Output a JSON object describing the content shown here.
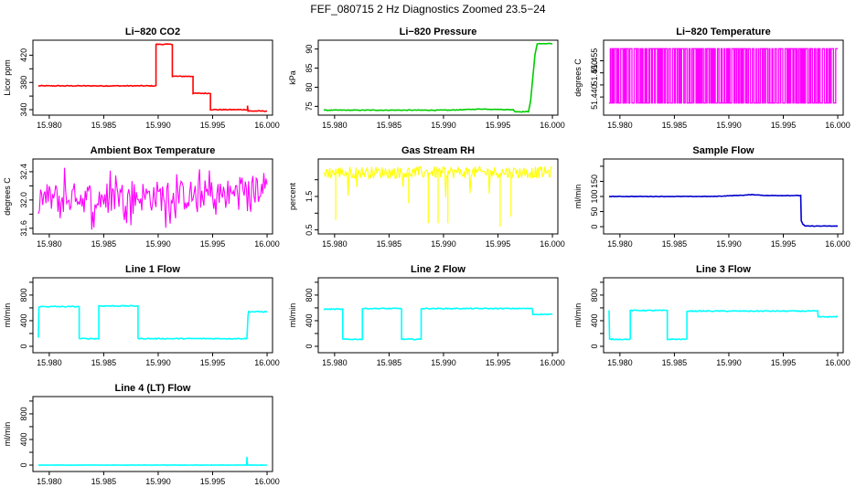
{
  "figure": {
    "title": "FEF_080715  2 Hz Diagnostics Zoomed 23.5−24"
  },
  "x_ticks": [
    "15.980",
    "15.985",
    "15.990",
    "15.995",
    "16.000"
  ],
  "colors": {
    "red": "#ff0000",
    "green": "#00cc00",
    "magenta": "#ff00ff",
    "yellow": "#ffff00",
    "blue": "#0000cc",
    "cyan": "#00ffff",
    "axis": "#000000"
  },
  "chart_data": [
    {
      "type": "line",
      "title": "Li−820 CO2",
      "ylabel": "Licor ppm",
      "xlim": [
        15.9785,
        16.0005
      ],
      "ylim": [
        332,
        442
      ],
      "yticks": [
        340,
        360,
        380,
        400,
        420
      ],
      "ytick_labels": [
        "340",
        "",
        "380",
        "",
        "420"
      ],
      "color": "red",
      "noise": 0.6,
      "segments": [
        [
          15.979,
          375
        ],
        [
          15.9898,
          375
        ],
        [
          15.9898,
          436
        ],
        [
          15.9913,
          436
        ],
        [
          15.9913,
          389
        ],
        [
          15.9932,
          389
        ],
        [
          15.9932,
          364
        ],
        [
          15.9948,
          364
        ],
        [
          15.9948,
          340
        ],
        [
          15.9982,
          340
        ],
        [
          15.9982,
          346
        ],
        [
          15.99825,
          338
        ],
        [
          16.0,
          338
        ]
      ]
    },
    {
      "type": "line",
      "title": "Li−820 Pressure",
      "ylabel": "kPa",
      "xlim": [
        15.9785,
        16.0005
      ],
      "ylim": [
        72.7,
        92.3
      ],
      "yticks": [
        75,
        80,
        85,
        90
      ],
      "ytick_labels": [
        "75",
        "80",
        "85",
        "90"
      ],
      "color": "green",
      "noise": 0.08,
      "segments": [
        [
          15.979,
          74.0
        ],
        [
          15.9905,
          74.0
        ],
        [
          15.9935,
          74.3
        ],
        [
          15.9964,
          74.1
        ],
        [
          15.9966,
          73.6
        ],
        [
          15.9978,
          73.6
        ],
        [
          15.998,
          76.5
        ],
        [
          15.9984,
          88.5
        ],
        [
          15.9986,
          91.4
        ],
        [
          16.0,
          91.4
        ]
      ]
    },
    {
      "type": "binary",
      "title": "Li−820 Temperature",
      "ylabel": "degrees C",
      "xlim": [
        15.9785,
        16.0005
      ],
      "ylim": [
        51.4325,
        51.4635
      ],
      "yticks": [
        51.44,
        51.445,
        51.45,
        51.455
      ],
      "ytick_labels": [
        "51.440",
        "",
        "51.450",
        "51.455"
      ],
      "color": "magenta",
      "values": [
        51.4375,
        51.46
      ]
    },
    {
      "type": "noise",
      "title": "Ambient Box Temperature",
      "ylabel": "degrees C",
      "xlim": [
        15.9785,
        16.0005
      ],
      "ylim": [
        31.52,
        32.58
      ],
      "yticks": [
        31.6,
        31.8,
        32.0,
        32.2,
        32.4
      ],
      "ytick_labels": [
        "31.6",
        "",
        "32.0",
        "",
        "32.4"
      ],
      "color": "magenta",
      "base": [
        [
          15.979,
          32.02
        ],
        [
          15.9975,
          32.08
        ],
        [
          16.0,
          32.2
        ]
      ],
      "amp": 0.22,
      "spike_rate": 0.12,
      "spike_amp": 0.35,
      "step": 0.0001
    },
    {
      "type": "noise",
      "title": "Gas Stream RH",
      "ylabel": "percent",
      "xlim": [
        15.9785,
        16.0005
      ],
      "ylim": [
        0.38,
        2.62
      ],
      "yticks": [
        0.5,
        1.0,
        1.5,
        2.0
      ],
      "ytick_labels": [
        "0.5",
        "",
        "1.5",
        ""
      ],
      "color": "yellow",
      "base": [
        [
          15.979,
          2.22
        ],
        [
          16.0,
          2.22
        ]
      ],
      "amp": 0.18,
      "spike_rate": 0.03,
      "spike_amp": -0.9,
      "step": 8e-05,
      "dips": [
        [
          15.9801,
          0.8
        ],
        [
          15.9868,
          1.3
        ],
        [
          15.9886,
          0.7
        ],
        [
          15.9895,
          0.7
        ],
        [
          15.9904,
          0.7
        ],
        [
          15.9952,
          0.6
        ],
        [
          15.9962,
          0.9
        ]
      ]
    },
    {
      "type": "line",
      "title": "Sample Flow",
      "ylabel": "ml/min",
      "xlim": [
        15.9785,
        16.0005
      ],
      "ylim": [
        -24,
        224
      ],
      "yticks": [
        0,
        50,
        100,
        150,
        200
      ],
      "ytick_labels": [
        "0",
        "50",
        "100",
        "150",
        ""
      ],
      "color": "blue",
      "noise": 0.8,
      "segments": [
        [
          15.979,
          100
        ],
        [
          15.9885,
          100
        ],
        [
          15.9912,
          104
        ],
        [
          15.9922,
          106
        ],
        [
          15.9935,
          103
        ],
        [
          15.9966,
          103
        ],
        [
          15.99665,
          20
        ],
        [
          15.9968,
          8
        ],
        [
          15.997,
          2
        ],
        [
          16.0,
          2
        ]
      ]
    },
    {
      "type": "line",
      "title": "Line 1 Flow",
      "ylabel": "ml/min",
      "xlim": [
        15.9785,
        16.0005
      ],
      "ylim": [
        -100,
        1070
      ],
      "yticks": [
        0,
        200,
        400,
        600,
        800,
        1000
      ],
      "ytick_labels": [
        "0",
        "",
        "400",
        "",
        "800",
        ""
      ],
      "color": "cyan",
      "noise": 7,
      "segments": [
        [
          15.979,
          130
        ],
        [
          15.97905,
          620
        ],
        [
          15.98275,
          620
        ],
        [
          15.98275,
          120
        ],
        [
          15.98455,
          120
        ],
        [
          15.98455,
          630
        ],
        [
          15.98815,
          630
        ],
        [
          15.98815,
          120
        ],
        [
          15.99815,
          120
        ],
        [
          15.99825,
          480
        ],
        [
          15.9983,
          540
        ],
        [
          16.0,
          540
        ]
      ]
    },
    {
      "type": "line",
      "title": "Line 2 Flow",
      "ylabel": "ml/min",
      "xlim": [
        15.9785,
        16.0005
      ],
      "ylim": [
        -100,
        1070
      ],
      "yticks": [
        0,
        200,
        400,
        600,
        800,
        1000
      ],
      "ytick_labels": [
        "0",
        "",
        "400",
        "",
        "800",
        ""
      ],
      "color": "cyan",
      "noise": 7,
      "segments": [
        [
          15.979,
          580
        ],
        [
          15.98075,
          580
        ],
        [
          15.98075,
          110
        ],
        [
          15.98255,
          110
        ],
        [
          15.98255,
          590
        ],
        [
          15.98615,
          590
        ],
        [
          15.98615,
          110
        ],
        [
          15.98795,
          110
        ],
        [
          15.98795,
          590
        ],
        [
          15.99815,
          590
        ],
        [
          15.9982,
          500
        ],
        [
          16.0,
          500
        ]
      ]
    },
    {
      "type": "line",
      "title": "Line 3 Flow",
      "ylabel": "ml/min",
      "xlim": [
        15.9785,
        16.0005
      ],
      "ylim": [
        -100,
        1070
      ],
      "yticks": [
        0,
        200,
        400,
        600,
        800,
        1000
      ],
      "ytick_labels": [
        "0",
        "",
        "400",
        "",
        "800",
        ""
      ],
      "color": "cyan",
      "noise": 7,
      "segments": [
        [
          15.979,
          560
        ],
        [
          15.97905,
          110
        ],
        [
          15.98095,
          110
        ],
        [
          15.98095,
          560
        ],
        [
          15.98435,
          560
        ],
        [
          15.98435,
          110
        ],
        [
          15.98615,
          110
        ],
        [
          15.98615,
          550
        ],
        [
          15.99815,
          550
        ],
        [
          15.9982,
          460
        ],
        [
          16.0,
          460
        ]
      ]
    },
    {
      "type": "line",
      "title": "Line 4 (LT) Flow",
      "ylabel": "ml/min",
      "xlim": [
        15.9785,
        16.0005
      ],
      "ylim": [
        -100,
        1070
      ],
      "yticks": [
        0,
        200,
        400,
        600,
        800,
        1000
      ],
      "ytick_labels": [
        "0",
        "",
        "400",
        "",
        "800",
        ""
      ],
      "color": "cyan",
      "noise": 2,
      "segments": [
        [
          15.979,
          0
        ],
        [
          15.99812,
          0
        ],
        [
          15.99815,
          130
        ],
        [
          15.9982,
          0
        ],
        [
          16.0,
          0
        ]
      ]
    }
  ]
}
